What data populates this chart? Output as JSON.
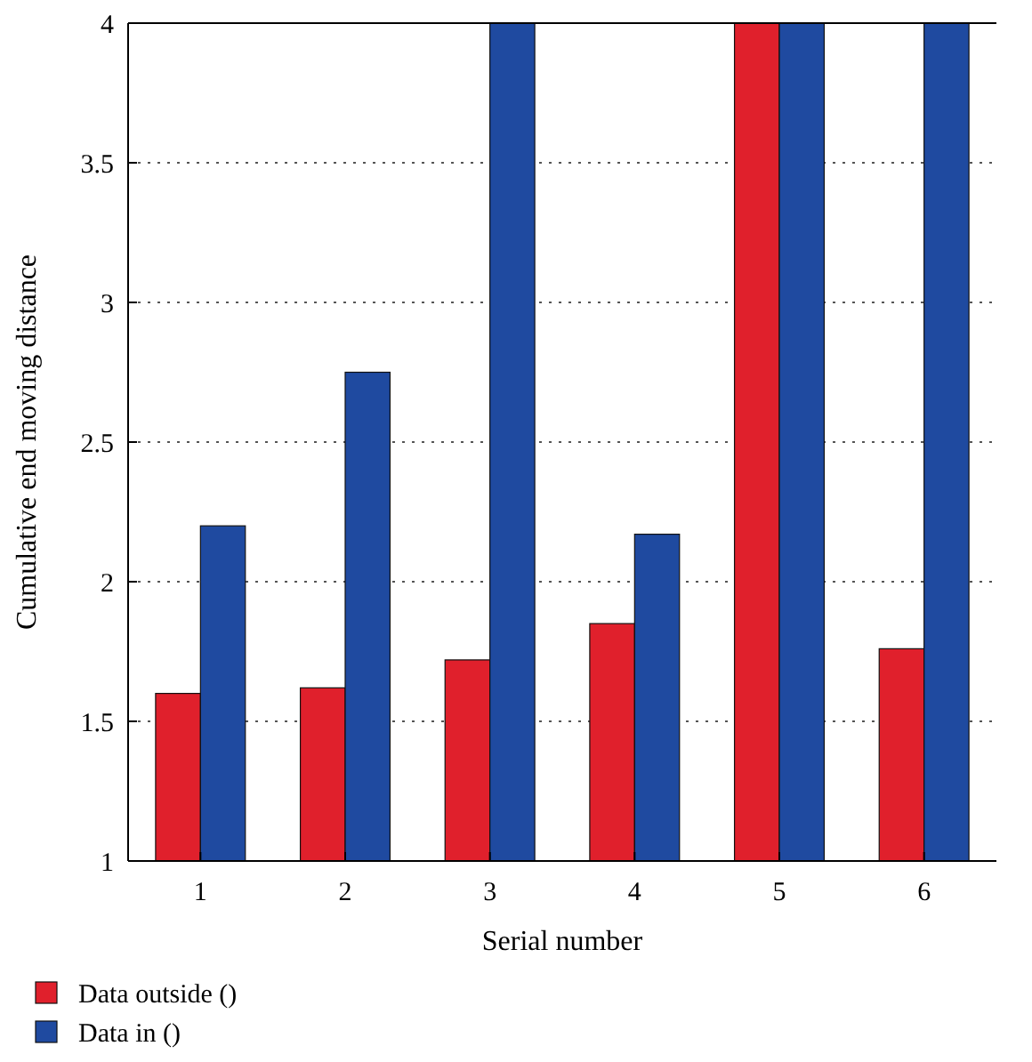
{
  "chart_data": {
    "type": "bar",
    "xlabel": "Serial number",
    "ylabel": "Cumulative end moving distance",
    "categories": [
      "1",
      "2",
      "3",
      "4",
      "5",
      "6"
    ],
    "series": [
      {
        "name": "Data outside ()",
        "color": "#e0202c",
        "values": [
          1.6,
          1.62,
          1.72,
          1.85,
          4,
          1.76
        ]
      },
      {
        "name": "Data in ()",
        "color": "#1f4aa0",
        "values": [
          2.2,
          2.75,
          4,
          2.17,
          4,
          4
        ]
      }
    ],
    "ylim": [
      1,
      4
    ],
    "yticks": [
      1,
      1.5,
      2,
      2.5,
      3,
      3.5,
      4
    ],
    "grid": "y",
    "legend": "bottom left"
  }
}
